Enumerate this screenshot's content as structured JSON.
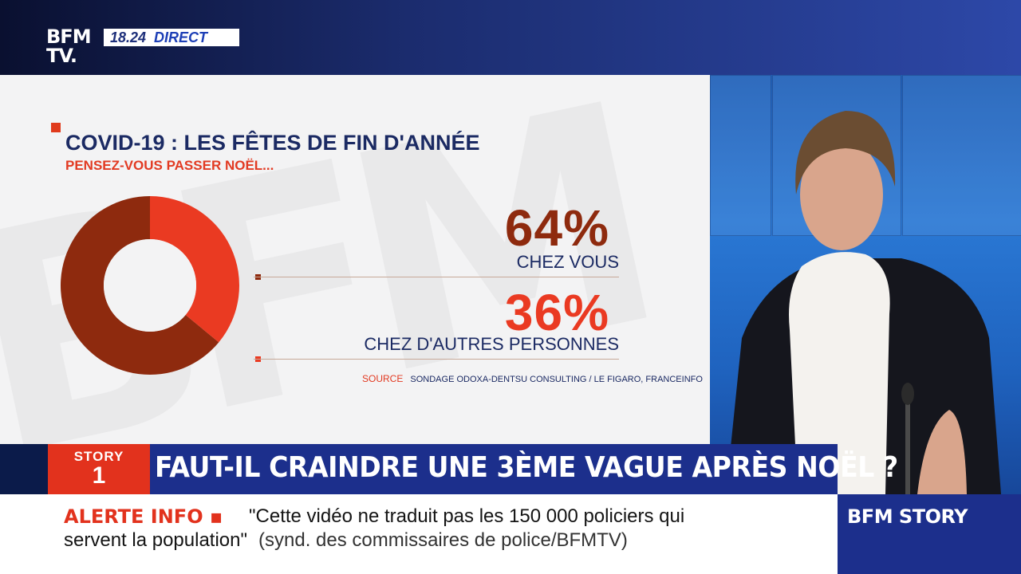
{
  "header": {
    "logo_line1": "BFM",
    "logo_line2": "TV.",
    "time": "18.24",
    "live": "DIRECT"
  },
  "chart_data": {
    "type": "pie",
    "donut": true,
    "title": "COVID-19 : LES FÊTES DE FIN D'ANNÉE",
    "subtitle": "PENSEZ-VOUS PASSER NOËL...",
    "slices": [
      {
        "label": "CHEZ VOUS",
        "value": 64,
        "display": "64%",
        "color": "#8e2a0e"
      },
      {
        "label": "CHEZ D'AUTRES PERSONNES",
        "value": 36,
        "display": "36%",
        "color": "#ea3a22"
      }
    ],
    "source_label": "SOURCE",
    "source_text": "SONDAGE ODOXA-DENTSU CONSULTING / LE FIGARO, FRANCEINFO"
  },
  "story": {
    "tag": "STORY",
    "number": "1",
    "headline": "FAUT-IL CRAINDRE UNE 3ÈME VAGUE APRÈS NOËL ?"
  },
  "ticker": {
    "alert_label": "ALERTE INFO ▪",
    "line1": "\"Cette vidéo ne traduit pas les 150 000 policiers qui",
    "line2": "servent la population\"",
    "attribution": "(synd. des commissaires de police/BFMTV)"
  },
  "show_name": "BFM STORY",
  "colors": {
    "navy": "#1c2f8c",
    "red": "#e2321d",
    "dark_red": "#8e2a0e"
  }
}
